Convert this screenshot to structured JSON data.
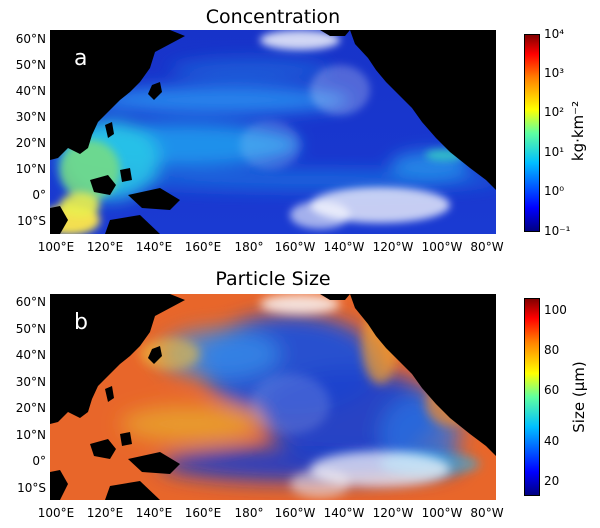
{
  "panels": [
    {
      "title": "Concentration",
      "letter": "a",
      "colorbar_label": "kg·km⁻²",
      "colorbar_ticks": [
        "10⁴",
        "10³",
        "10²",
        "10¹",
        "10⁰",
        "10⁻¹"
      ],
      "scale": "log"
    },
    {
      "title": "Particle Size",
      "letter": "b",
      "colorbar_label": "Size (μm)",
      "colorbar_ticks": [
        "100",
        "80",
        "60",
        "40",
        "20"
      ],
      "scale": "linear"
    }
  ],
  "lat_ticks": [
    "60°N",
    "50°N",
    "40°N",
    "30°N",
    "20°N",
    "10°N",
    "0°",
    "10°S"
  ],
  "lon_ticks": [
    "100°E",
    "120°E",
    "140°E",
    "160°E",
    "180°",
    "160°W",
    "140°W",
    "120°W",
    "100°W",
    "80°W"
  ],
  "colors": {
    "land": "#000000",
    "ocean_low": "#1a2fbf",
    "jet_colormap": [
      "#00007f",
      "#0000ff",
      "#007fff",
      "#00ffff",
      "#7fff7f",
      "#ffff00",
      "#ff7f00",
      "#ff0000",
      "#7f0000"
    ]
  }
}
